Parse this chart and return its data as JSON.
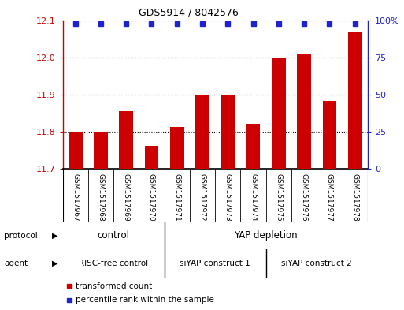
{
  "title": "GDS5914 / 8042576",
  "samples": [
    "GSM1517967",
    "GSM1517968",
    "GSM1517969",
    "GSM1517970",
    "GSM1517971",
    "GSM1517972",
    "GSM1517973",
    "GSM1517974",
    "GSM1517975",
    "GSM1517976",
    "GSM1517977",
    "GSM1517978"
  ],
  "bar_values": [
    11.8,
    11.8,
    11.855,
    11.762,
    11.812,
    11.9,
    11.9,
    11.822,
    12.0,
    12.01,
    11.882,
    12.07
  ],
  "bar_color": "#cc0000",
  "dot_color": "#2222cc",
  "ylim_left": [
    11.7,
    12.1
  ],
  "yticks_left": [
    11.7,
    11.8,
    11.9,
    12.0,
    12.1
  ],
  "ylim_right": [
    0,
    100
  ],
  "yticks_right": [
    0,
    25,
    50,
    75,
    100
  ],
  "yticklabels_right": [
    "0",
    "25",
    "50",
    "75",
    "100%"
  ],
  "gridlines": [
    11.8,
    11.9,
    12.0
  ],
  "protocol_color": "#99ee99",
  "agent_color": "#ee99ee",
  "xlabel_bg": "#cccccc",
  "legend_bar_label": "transformed count",
  "legend_dot_label": "percentile rank within the sample",
  "background_color": "#ffffff",
  "title_fontsize": 9,
  "bar_width": 0.55
}
